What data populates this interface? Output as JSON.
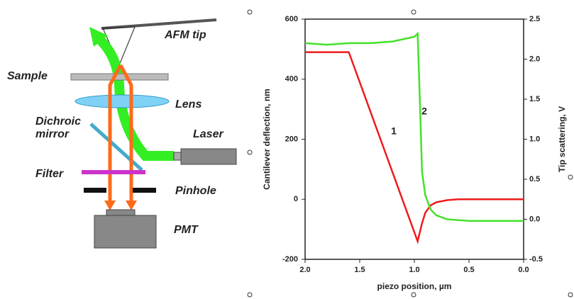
{
  "diagram": {
    "labels": [
      "AFM tip",
      "Sample",
      "Lens",
      "Dichroic",
      "mirror",
      "Laser",
      "Filter",
      "Pinhole",
      "PMT"
    ]
  },
  "chart_data": {
    "type": "line",
    "xlabel": "piezo position, µm",
    "ylabel": "Cantilever deflection, nm",
    "y2label": "Tip scattering, V",
    "xlim": [
      2.0,
      0.0
    ],
    "xticks": [
      {
        "value": 2.0,
        "label": "2.0"
      },
      {
        "value": 1.5,
        "label": "1.5"
      },
      {
        "value": 1.0,
        "label": "1.0"
      },
      {
        "value": 0.5,
        "label": "0.5"
      },
      {
        "value": 0.0,
        "label": "0.0"
      }
    ],
    "ylim": [
      -200,
      600
    ],
    "yticks": [
      -200,
      0,
      200,
      400,
      600
    ],
    "y2lim": [
      -0.5,
      2.5
    ],
    "y2ticks": [
      -0.5,
      {
        "value": 0.0,
        "label": "0.0"
      },
      {
        "value": 0.5,
        "label": "0.5"
      },
      {
        "value": 1.0,
        "label": "1.0"
      },
      {
        "value": 1.5,
        "label": "1.5"
      },
      {
        "value": 2.0,
        "label": "2.0"
      },
      2.5
    ],
    "series": [
      {
        "name": "1",
        "color": "#ee1c1c",
        "x": [
          2.0,
          1.6,
          0.97,
          0.93,
          0.9,
          0.85,
          0.8,
          0.7,
          0.6,
          0.0
        ],
        "values": [
          490,
          490,
          -140,
          -80,
          -45,
          -20,
          -10,
          -3,
          0,
          0
        ]
      },
      {
        "name": "2",
        "color": "#44e12b",
        "axis": "y2",
        "x": [
          2.0,
          1.8,
          1.6,
          1.4,
          1.2,
          1.0,
          0.97,
          0.95,
          0.93,
          0.9,
          0.85,
          0.8,
          0.7,
          0.5,
          0.0
        ],
        "values": [
          2.2,
          2.18,
          2.2,
          2.2,
          2.22,
          2.28,
          2.32,
          1.5,
          0.6,
          0.3,
          0.12,
          0.05,
          0.0,
          -0.02,
          -0.02
        ]
      }
    ]
  }
}
